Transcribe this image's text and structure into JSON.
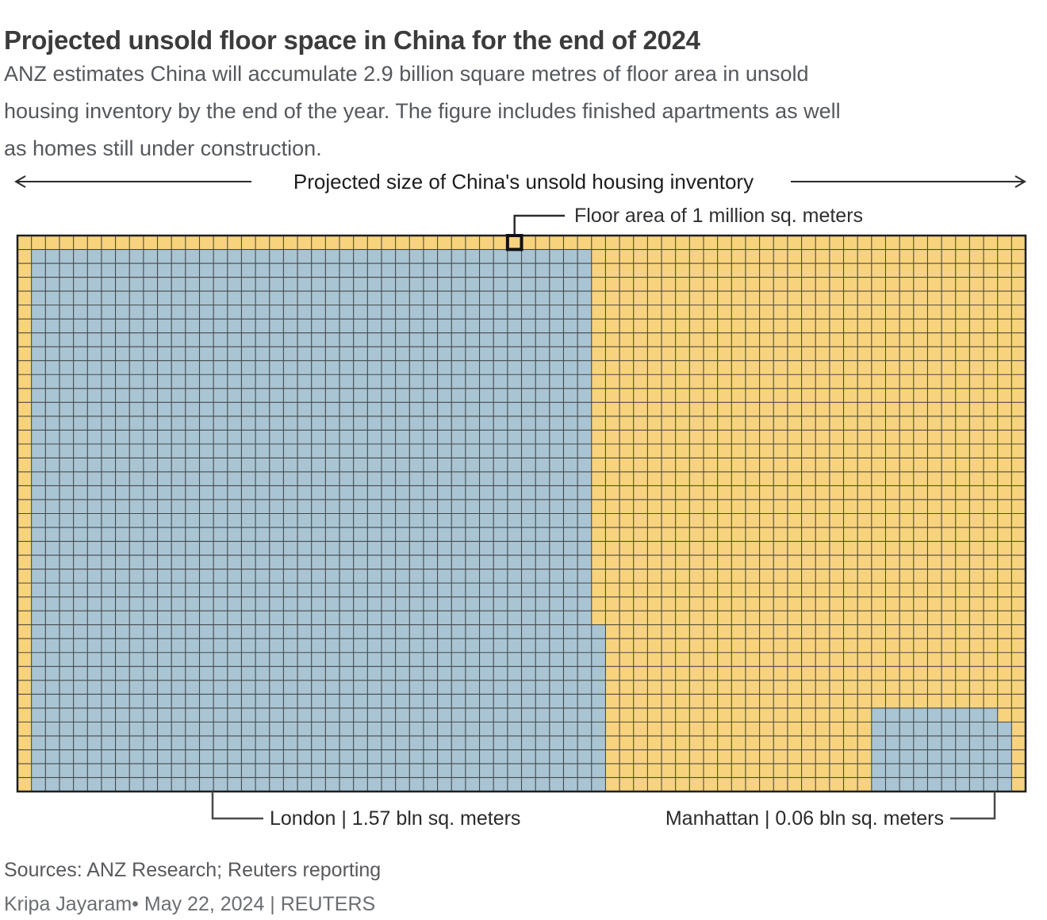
{
  "header": {
    "title": "Projected unsold floor space in China for the end of 2024",
    "subtitle_lines": [
      "ANZ estimates China will accumulate 2.9 billion square metres of floor area in unsold",
      "housing inventory by the end of the year. The figure includes finished apartments as well",
      "as homes still under construction."
    ]
  },
  "span_arrow": {
    "label": "Projected size of China's unsold housing inventory"
  },
  "annotation": {
    "label": "Floor area of 1 million sq. meters"
  },
  "chart_data": {
    "type": "waffle",
    "title": "Projected size of China's unsold housing inventory",
    "grid": {
      "columns": 72,
      "rows": 40
    },
    "cell_value_label": "Floor area of 1 million sq. meters",
    "cell_value_sq_meters": 1000000,
    "total": {
      "name": "China projected unsold housing inventory",
      "value_bln_sq_m": 2.9
    },
    "background_color": "#F7D37E",
    "grid_line_color": "#343434",
    "outer_border_color": "#1f1f1f",
    "regions": [
      {
        "id": "london",
        "name": "London",
        "value_bln_sq_m": 1.57,
        "label": "London | 1.57 bln sq. meters",
        "color": "#A9C5D3",
        "blocks": [
          {
            "row": 1,
            "col": 1,
            "rows": 39,
            "cols": 40
          },
          {
            "row": 28,
            "col": 41,
            "rows": 12,
            "cols": 1
          }
        ]
      },
      {
        "id": "manhattan",
        "name": "Manhattan",
        "value_bln_sq_m": 0.06,
        "label": "Manhattan | 0.06 bln sq. meters",
        "color": "#A9C5D3",
        "blocks": [
          {
            "row": 34,
            "col": 61,
            "rows": 1,
            "cols": 9
          },
          {
            "row": 35,
            "col": 61,
            "rows": 5,
            "cols": 10
          }
        ]
      }
    ],
    "highlight_cell": {
      "row": 0,
      "col": 35,
      "stroke": "#111111"
    }
  },
  "footer": {
    "sources": "Sources: ANZ Research; Reuters reporting",
    "byline": "Kripa Jayaram• May 22, 2024 | REUTERS"
  }
}
